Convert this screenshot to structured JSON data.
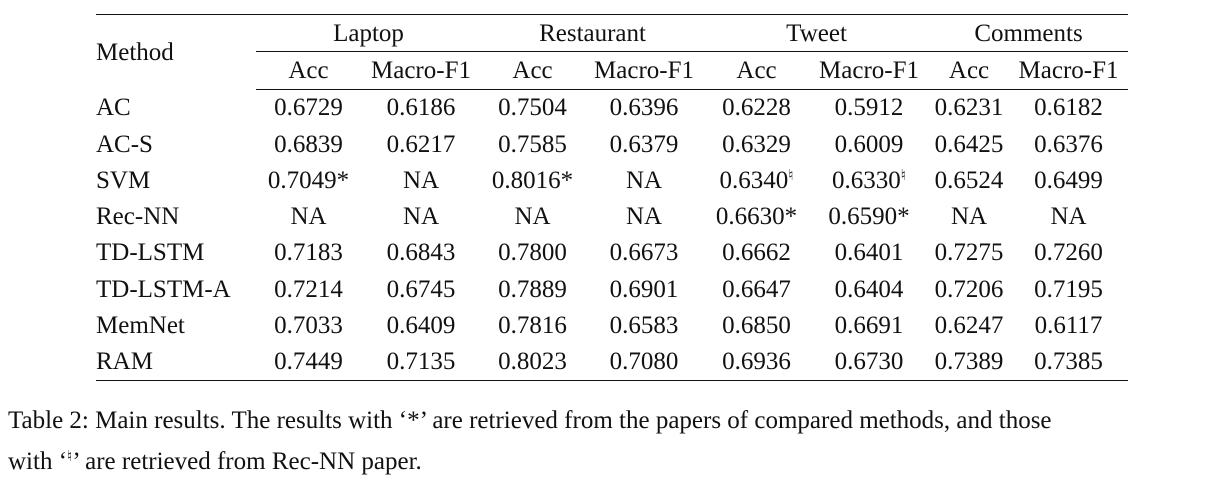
{
  "table": {
    "method_header": "Method",
    "groups": [
      "Laptop",
      "Restaurant",
      "Tweet",
      "Comments"
    ],
    "subheaders": [
      "Acc",
      "Macro-F1",
      "Acc",
      "Macro-F1",
      "Acc",
      "Macro-F1",
      "Acc",
      "Macro-F1"
    ],
    "rows": [
      {
        "method": "AC",
        "values": [
          "0.6729",
          "0.6186",
          "0.7504",
          "0.6396",
          "0.6228",
          "0.5912",
          "0.6231",
          "0.6182"
        ]
      },
      {
        "method": "AC-S",
        "values": [
          "0.6839",
          "0.6217",
          "0.7585",
          "0.6379",
          "0.6329",
          "0.6009",
          "0.6425",
          "0.6376"
        ]
      },
      {
        "method": "SVM",
        "values": [
          "0.7049*",
          "NA",
          "0.8016*",
          "NA",
          "0.6340",
          "0.6330",
          "0.6524",
          "0.6499"
        ],
        "marks": [
          "",
          "",
          "",
          "",
          "♮",
          "♮",
          "",
          ""
        ]
      },
      {
        "method": "Rec-NN",
        "values": [
          "NA",
          "NA",
          "NA",
          "NA",
          "0.6630*",
          "0.6590*",
          "NA",
          "NA"
        ]
      },
      {
        "method": "TD-LSTM",
        "values": [
          "0.7183",
          "0.6843",
          "0.7800",
          "0.6673",
          "0.6662",
          "0.6401",
          "0.7275",
          "0.7260"
        ]
      },
      {
        "method": "TD-LSTM-A",
        "values": [
          "0.7214",
          "0.6745",
          "0.7889",
          "0.6901",
          "0.6647",
          "0.6404",
          "0.7206",
          "0.7195"
        ]
      },
      {
        "method": "MemNet",
        "values": [
          "0.7033",
          "0.6409",
          "0.7816",
          "0.6583",
          "0.6850",
          "0.6691",
          "0.6247",
          "0.6117"
        ]
      },
      {
        "method": "RAM",
        "values": [
          "0.7449",
          "0.7135",
          "0.8023",
          "0.7080",
          "0.6936",
          "0.6730",
          "0.7389",
          "0.7385"
        ],
        "bold": true
      }
    ]
  },
  "caption": {
    "line1": "Table 2:  Main results. The results with ‘*’ are retrieved from the papers of compared methods, and those",
    "line2_pre": "with ‘",
    "line2_mark": "♮",
    "line2_post": "’ are retrieved from Rec-NN paper."
  }
}
